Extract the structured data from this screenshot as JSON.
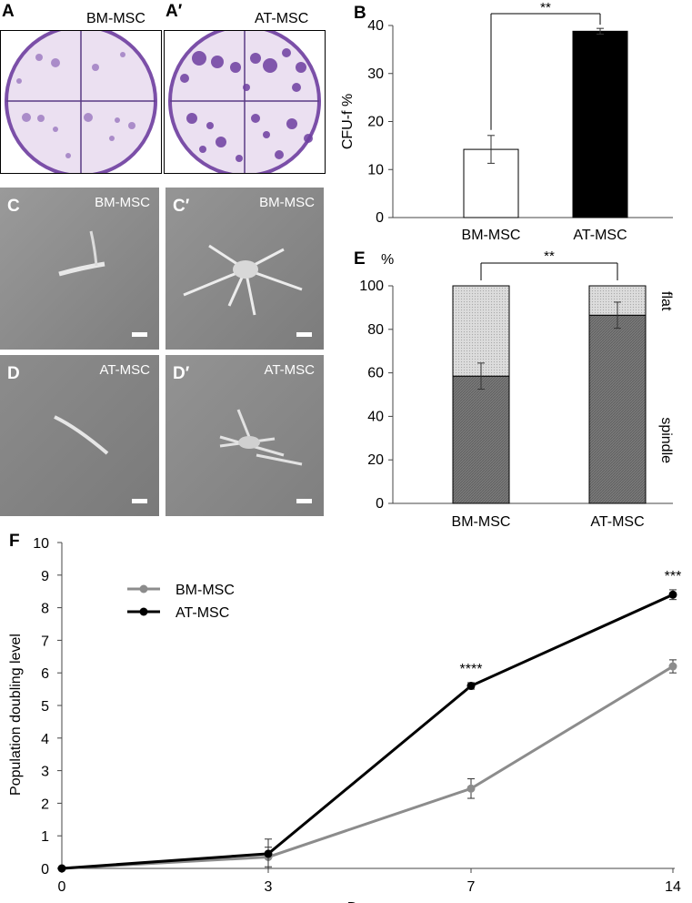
{
  "panels": {
    "A": {
      "letter": "A",
      "label": "BM-MSC"
    },
    "A2": {
      "letter": "A′",
      "label": "AT-MSC"
    },
    "C": {
      "letter": "C",
      "label": "BM-MSC"
    },
    "C2": {
      "letter": "C′",
      "label": "BM-MSC"
    },
    "D": {
      "letter": "D",
      "label": "AT-MSC"
    },
    "D2": {
      "letter": "D′",
      "label": "AT-MSC"
    },
    "B": {
      "letter": "B"
    },
    "E": {
      "letter": "E"
    },
    "F": {
      "letter": "F"
    }
  },
  "colors": {
    "stain": "#7b4fa8",
    "dish": "#e9def0",
    "micro_bg": "#8a8a8a",
    "bm_line": "#8c8c8c",
    "at_line": "#000000",
    "spindle": "#7a7a7a",
    "flat": "#d9d9d9"
  },
  "chart_data": [
    {
      "id": "B",
      "type": "bar",
      "categories": [
        "BM-MSC",
        "AT-MSC"
      ],
      "values": [
        14.2,
        38.8
      ],
      "errors": [
        2.9,
        0.6
      ],
      "ylabel": "CFU-f %",
      "ylim": [
        0,
        40
      ],
      "yticks": [
        0,
        10,
        20,
        30,
        40
      ],
      "significance": "**",
      "fills": [
        "#ffffff",
        "#000000"
      ]
    },
    {
      "id": "E",
      "type": "bar",
      "stacked": true,
      "categories": [
        "BM-MSC",
        "AT-MSC"
      ],
      "series": [
        {
          "name": "spindle",
          "values": [
            58.5,
            86.5
          ],
          "errors": [
            6,
            6
          ]
        },
        {
          "name": "flat",
          "values": [
            41.5,
            13.5
          ]
        }
      ],
      "ylabel": "%",
      "ylim": [
        0,
        100
      ],
      "yticks": [
        0,
        20,
        40,
        60,
        80,
        100
      ],
      "significance": "**"
    },
    {
      "id": "F",
      "type": "line",
      "x": [
        "0",
        "3",
        "7",
        "14"
      ],
      "series": [
        {
          "name": "BM-MSC",
          "values": [
            0,
            0.35,
            2.45,
            6.2
          ],
          "errors": [
            0,
            0.3,
            0.3,
            0.2
          ]
        },
        {
          "name": "AT-MSC",
          "values": [
            0,
            0.45,
            5.6,
            8.4
          ],
          "errors": [
            0,
            0.45,
            0.1,
            0.15
          ]
        }
      ],
      "xlabel": "Days",
      "ylabel": "Population doubling level",
      "ylim": [
        0,
        10
      ],
      "yticks": [
        0,
        1,
        2,
        3,
        4,
        5,
        6,
        7,
        8,
        9,
        10
      ],
      "annotations": [
        {
          "x": "7",
          "text": "****"
        },
        {
          "x": "14",
          "text": "***"
        }
      ],
      "legend": "top-left"
    }
  ]
}
